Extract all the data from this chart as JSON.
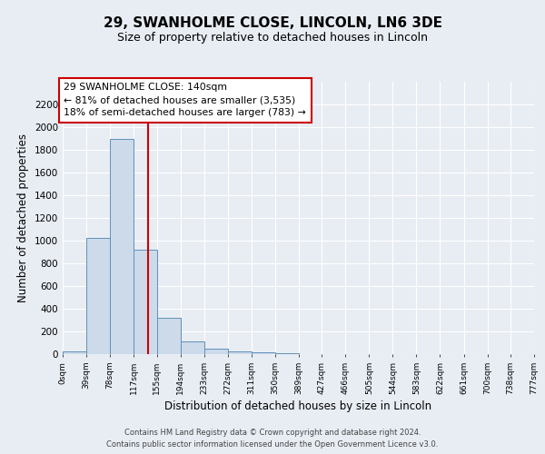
{
  "title": "29, SWANHOLME CLOSE, LINCOLN, LN6 3DE",
  "subtitle": "Size of property relative to detached houses in Lincoln",
  "xlabel": "Distribution of detached houses by size in Lincoln",
  "ylabel": "Number of detached properties",
  "bin_edges": [
    0,
    39,
    78,
    117,
    155,
    194,
    233,
    272,
    311,
    350,
    389,
    427,
    466,
    505,
    544,
    583,
    622,
    661,
    700,
    738,
    777
  ],
  "bar_heights": [
    25,
    1025,
    1900,
    920,
    320,
    110,
    50,
    25,
    15,
    5,
    0,
    0,
    0,
    0,
    0,
    0,
    0,
    0,
    0,
    0
  ],
  "bar_color": "#ccdaea",
  "bar_edge_color": "#6090b8",
  "property_size": 140,
  "red_line_color": "#cc0000",
  "annotation_title": "29 SWANHOLME CLOSE: 140sqm",
  "annotation_line1": "← 81% of detached houses are smaller (3,535)",
  "annotation_line2": "18% of semi-detached houses are larger (783) →",
  "annotation_box_color": "#ffffff",
  "annotation_box_edge_color": "#cc0000",
  "ylim": [
    0,
    2400
  ],
  "yticks": [
    0,
    200,
    400,
    600,
    800,
    1000,
    1200,
    1400,
    1600,
    1800,
    2000,
    2200
  ],
  "footer_line1": "Contains HM Land Registry data © Crown copyright and database right 2024.",
  "footer_line2": "Contains public sector information licensed under the Open Government Licence v3.0.",
  "background_color": "#e8edf4",
  "grid_color": "#ffffff",
  "plot_bg_color": "#e8edf4"
}
